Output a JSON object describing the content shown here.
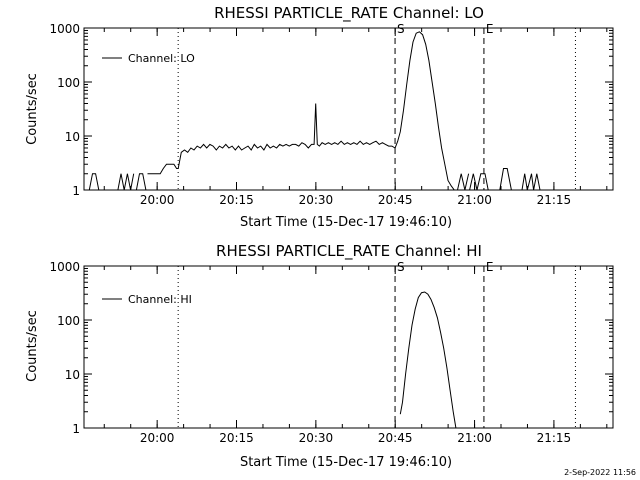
{
  "footer": {
    "timestamp": "2-Sep-2022 11:56"
  },
  "chart_data": [
    {
      "type": "line",
      "title": "RHESSI PARTICLE_RATE Channel: LO",
      "xlabel": "Start Time (15-Dec-17 19:46:10)",
      "ylabel": "Counts/sec",
      "x_unit": "minutes since 19:46:10 UT",
      "xlim": [
        0,
        100
      ],
      "ylim": [
        1,
        1000
      ],
      "yscale": "log",
      "x_ticks": [
        {
          "v": 13.83,
          "label": "20:00"
        },
        {
          "v": 28.83,
          "label": "20:15"
        },
        {
          "v": 43.83,
          "label": "20:30"
        },
        {
          "v": 58.83,
          "label": "20:45"
        },
        {
          "v": 73.83,
          "label": "21:00"
        },
        {
          "v": 88.83,
          "label": "21:15"
        }
      ],
      "y_ticks": [
        {
          "v": 1,
          "label": "1"
        },
        {
          "v": 10,
          "label": "10"
        },
        {
          "v": 100,
          "label": "100"
        },
        {
          "v": 1000,
          "label": "1000"
        }
      ],
      "grid": false,
      "legend": {
        "position": "top-left",
        "entries": [
          "Channel: LO"
        ]
      },
      "markers": [
        {
          "x": 17.8,
          "style": "dotted",
          "label": ""
        },
        {
          "x": 58.8,
          "style": "dashed",
          "label": "S"
        },
        {
          "x": 75.6,
          "style": "dashed",
          "label": "E"
        },
        {
          "x": 92.9,
          "style": "dotted",
          "label": ""
        }
      ],
      "series": [
        {
          "name": "Channel: LO",
          "segments": [
            {
              "x": [
                1.0,
                1.6,
                2.2,
                2.8
              ],
              "y": [
                1,
                2,
                2,
                1
              ]
            },
            {
              "x": [
                6.4,
                7.0,
                7.6,
                8.2,
                8.8,
                9.4
              ],
              "y": [
                1,
                2,
                1,
                2,
                1,
                2
              ]
            },
            {
              "x": [
                9.9,
                10.5,
                11.1,
                11.7
              ],
              "y": [
                1,
                2,
                2,
                1
              ]
            },
            {
              "x": [
                12.0,
                12.8,
                13.6,
                14.4,
                15.0,
                15.6,
                16.3,
                17.0,
                17.5,
                17.8,
                18.4,
                19.0,
                19.6,
                20.2,
                20.8,
                21.4,
                22.0,
                22.6,
                23.2,
                23.8,
                24.4,
                25.0,
                25.6,
                26.2,
                26.8,
                27.4,
                28.0,
                28.6,
                29.2,
                29.8,
                30.4,
                31.0,
                31.6,
                32.2,
                32.8,
                33.4,
                34.0,
                34.6,
                35.2,
                35.8,
                36.4,
                37.0,
                37.6,
                38.2,
                38.8,
                39.4,
                40.0,
                40.6,
                41.2,
                41.8,
                42.4,
                43.0,
                43.5,
                43.8,
                44.1,
                44.5,
                45.0,
                45.6,
                46.2,
                46.8,
                47.4,
                48.0,
                48.6,
                49.2,
                49.8,
                50.4,
                51.0,
                51.6,
                52.2,
                52.8,
                53.4,
                54.0,
                54.6,
                55.2,
                55.8,
                56.4,
                57.0,
                57.6,
                58.2,
                58.8,
                59.3,
                59.8,
                60.4,
                61.0,
                61.6,
                62.2,
                62.8,
                63.4,
                64.0,
                64.6,
                65.2,
                65.8,
                66.4,
                67.0,
                67.6,
                68.2,
                68.8,
                69.4,
                70.0,
                70.4
              ],
              "y": [
                2,
                2,
                2,
                2,
                2.5,
                3,
                3,
                3,
                2.5,
                2.5,
                5,
                5.5,
                5,
                6,
                5.5,
                6.5,
                6,
                7,
                6,
                7,
                6.5,
                5.5,
                6.5,
                6,
                7,
                6,
                6.5,
                5.5,
                6.5,
                5.5,
                6,
                6.5,
                5.5,
                7,
                6,
                6.5,
                5.5,
                7,
                6,
                6.5,
                6,
                7,
                6.5,
                7,
                6.5,
                7,
                7,
                6.5,
                7.5,
                7,
                6,
                7,
                7,
                40,
                7,
                6.5,
                7.5,
                7,
                7.5,
                7,
                7.5,
                7,
                8,
                7,
                7.5,
                7,
                7.5,
                7,
                8,
                7,
                7.5,
                7,
                7.5,
                8,
                7,
                7.5,
                7,
                6.5,
                6.5,
                6,
                8,
                12,
                30,
                90,
                250,
                550,
                800,
                850,
                750,
                500,
                250,
                100,
                40,
                15,
                6,
                3,
                1.5,
                1.2,
                1.0,
                1.0
              ]
            },
            {
              "x": [
                70.6,
                71.3,
                72.0,
                72.7
              ],
              "y": [
                1,
                2,
                1,
                2
              ]
            },
            {
              "x": [
                72.9,
                73.6,
                74.3,
                75.0,
                75.8,
                76.4
              ],
              "y": [
                1,
                2,
                1,
                2,
                2,
                1
              ]
            },
            {
              "x": [
                78.6,
                79.3,
                80.0,
                80.8
              ],
              "y": [
                1,
                2.5,
                2.5,
                1
              ]
            },
            {
              "x": [
                82.8,
                83.3,
                83.8,
                84.6,
                85.0,
                85.6,
                86.2
              ],
              "y": [
                1,
                2,
                1,
                2,
                1,
                2,
                1
              ]
            }
          ]
        }
      ]
    },
    {
      "type": "line",
      "title": "RHESSI PARTICLE_RATE Channel: HI",
      "xlabel": "Start Time (15-Dec-17 19:46:10)",
      "ylabel": "Counts/sec",
      "x_unit": "minutes since 19:46:10 UT",
      "xlim": [
        0,
        100
      ],
      "ylim": [
        1,
        1000
      ],
      "yscale": "log",
      "x_ticks": [
        {
          "v": 13.83,
          "label": "20:00"
        },
        {
          "v": 28.83,
          "label": "20:15"
        },
        {
          "v": 43.83,
          "label": "20:30"
        },
        {
          "v": 58.83,
          "label": "20:45"
        },
        {
          "v": 73.83,
          "label": "21:00"
        },
        {
          "v": 88.83,
          "label": "21:15"
        }
      ],
      "y_ticks": [
        {
          "v": 1,
          "label": "1"
        },
        {
          "v": 10,
          "label": "10"
        },
        {
          "v": 100,
          "label": "100"
        },
        {
          "v": 1000,
          "label": "1000"
        }
      ],
      "grid": false,
      "legend": {
        "position": "top-left",
        "entries": [
          "Channel: HI"
        ]
      },
      "markers": [
        {
          "x": 17.8,
          "style": "dotted",
          "label": ""
        },
        {
          "x": 58.8,
          "style": "dashed",
          "label": "S"
        },
        {
          "x": 75.6,
          "style": "dashed",
          "label": "E"
        },
        {
          "x": 92.9,
          "style": "dotted",
          "label": ""
        }
      ],
      "series": [
        {
          "name": "Channel: HI",
          "segments": [
            {
              "x": [
                59.8,
                60.2,
                60.8,
                61.4,
                62.0,
                62.6,
                63.2,
                63.8,
                64.4,
                65.0,
                65.6,
                66.2,
                66.8,
                67.4,
                68.0,
                68.6,
                69.2,
                69.8,
                70.3
              ],
              "y": [
                1.8,
                3,
                10,
                30,
                80,
                160,
                260,
                320,
                330,
                300,
                240,
                170,
                110,
                60,
                30,
                13,
                5,
                2,
                1
              ]
            }
          ]
        }
      ]
    }
  ]
}
